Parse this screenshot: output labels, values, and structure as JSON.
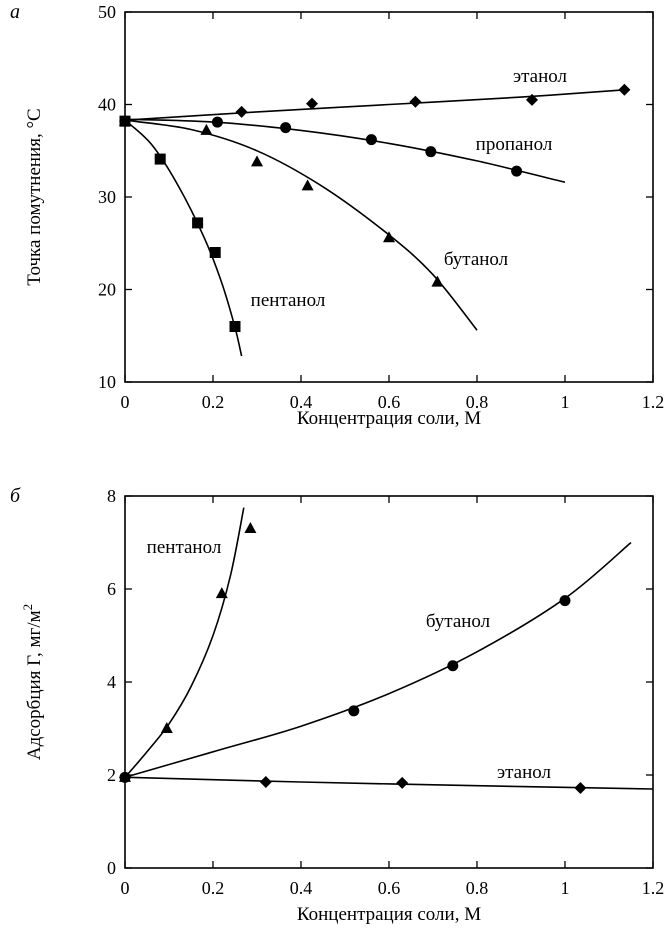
{
  "chart_data": [
    {
      "type": "scatter",
      "panel": "а",
      "xlabel": "Концентрация соли, М",
      "ylabel": "Точка помутнения, °С",
      "xlim": [
        0,
        1.2
      ],
      "ylim": [
        10,
        50
      ],
      "xticks": [
        0,
        0.2,
        0.4,
        0.6,
        0.8,
        1,
        1.2
      ],
      "xtick_labels": [
        "0",
        "0.2",
        "0.4",
        "0.6",
        "0.8",
        "1",
        "1.2"
      ],
      "yticks": [
        10,
        20,
        30,
        40,
        50
      ],
      "ytick_labels": [
        "10",
        "20",
        "30",
        "40",
        "50"
      ],
      "series": [
        {
          "name": "этанол",
          "marker": "diamond",
          "points": [
            [
              0,
              38.2
            ],
            [
              0.265,
              39.2
            ],
            [
              0.425,
              40.1
            ],
            [
              0.66,
              40.3
            ],
            [
              0.925,
              40.5
            ],
            [
              1.135,
              41.6
            ]
          ],
          "curve": [
            [
              0,
              38.3
            ],
            [
              0.3,
              39.2
            ],
            [
              0.6,
              40.0
            ],
            [
              0.9,
              40.8
            ],
            [
              1.14,
              41.6
            ]
          ]
        },
        {
          "name": "пропанол",
          "marker": "circle",
          "points": [
            [
              0,
              38.2
            ],
            [
              0.21,
              38.1
            ],
            [
              0.365,
              37.5
            ],
            [
              0.56,
              36.2
            ],
            [
              0.695,
              34.9
            ],
            [
              0.89,
              32.8
            ]
          ],
          "curve": [
            [
              0,
              38.4
            ],
            [
              0.2,
              38.1
            ],
            [
              0.4,
              37.2
            ],
            [
              0.6,
              35.8
            ],
            [
              0.8,
              33.9
            ],
            [
              1.0,
              31.6
            ]
          ]
        },
        {
          "name": "бутанол",
          "marker": "triangle",
          "points": [
            [
              0,
              38.2
            ],
            [
              0.185,
              37.2
            ],
            [
              0.3,
              33.8
            ],
            [
              0.415,
              31.2
            ],
            [
              0.6,
              25.6
            ],
            [
              0.71,
              20.8
            ]
          ],
          "curve": [
            [
              0,
              38.3
            ],
            [
              0.15,
              37.3
            ],
            [
              0.3,
              35.0
            ],
            [
              0.45,
              31.1
            ],
            [
              0.6,
              25.9
            ],
            [
              0.7,
              21.6
            ],
            [
              0.8,
              15.6
            ]
          ]
        },
        {
          "name": "пентанол",
          "marker": "square",
          "points": [
            [
              0,
              38.2
            ],
            [
              0.08,
              34.1
            ],
            [
              0.165,
              27.2
            ],
            [
              0.205,
              24.0
            ],
            [
              0.25,
              16.0
            ]
          ],
          "curve": [
            [
              0,
              38.3
            ],
            [
              0.06,
              35.7
            ],
            [
              0.12,
              31.3
            ],
            [
              0.18,
              25.6
            ],
            [
              0.22,
              20.7
            ],
            [
              0.25,
              15.9
            ],
            [
              0.265,
              12.8
            ]
          ]
        }
      ]
    },
    {
      "type": "scatter",
      "panel": "б",
      "xlabel": "Концентрация соли, М",
      "ylabel": "Адсорбция Г, мг/м",
      "ylabel_superscript": "2",
      "xlim": [
        0,
        1.2
      ],
      "ylim": [
        0,
        8
      ],
      "xticks": [
        0,
        0.2,
        0.4,
        0.6,
        0.8,
        1,
        1.2
      ],
      "xtick_labels": [
        "0",
        "0.2",
        "0.4",
        "0.6",
        "0.8",
        "1",
        "1.2"
      ],
      "yticks": [
        0,
        2,
        4,
        6,
        8
      ],
      "ytick_labels": [
        "0",
        "2",
        "4",
        "6",
        "8"
      ],
      "series": [
        {
          "name": "пентанол",
          "marker": "triangle",
          "points": [
            [
              0,
              1.95
            ],
            [
              0.095,
              3.0
            ],
            [
              0.22,
              5.9
            ],
            [
              0.285,
              7.3
            ]
          ],
          "curve": [
            [
              0,
              1.95
            ],
            [
              0.05,
              2.5
            ],
            [
              0.1,
              3.1
            ],
            [
              0.15,
              3.9
            ],
            [
              0.2,
              5.0
            ],
            [
              0.24,
              6.3
            ],
            [
              0.27,
              7.75
            ]
          ]
        },
        {
          "name": "бутанол",
          "marker": "circle",
          "points": [
            [
              0,
              1.95
            ],
            [
              0.52,
              3.38
            ],
            [
              0.745,
              4.35
            ],
            [
              1.0,
              5.75
            ]
          ],
          "curve": [
            [
              0,
              1.95
            ],
            [
              0.2,
              2.5
            ],
            [
              0.4,
              3.05
            ],
            [
              0.6,
              3.75
            ],
            [
              0.8,
              4.65
            ],
            [
              1.0,
              5.8
            ],
            [
              1.15,
              7.0
            ]
          ]
        },
        {
          "name": "этанол",
          "marker": "diamond",
          "points": [
            [
              0,
              1.95
            ],
            [
              0.32,
              1.85
            ],
            [
              0.63,
              1.83
            ],
            [
              1.035,
              1.72
            ]
          ],
          "curve": [
            [
              0,
              1.95
            ],
            [
              0.4,
              1.85
            ],
            [
              0.8,
              1.77
            ],
            [
              1.2,
              1.7
            ]
          ]
        }
      ]
    }
  ]
}
